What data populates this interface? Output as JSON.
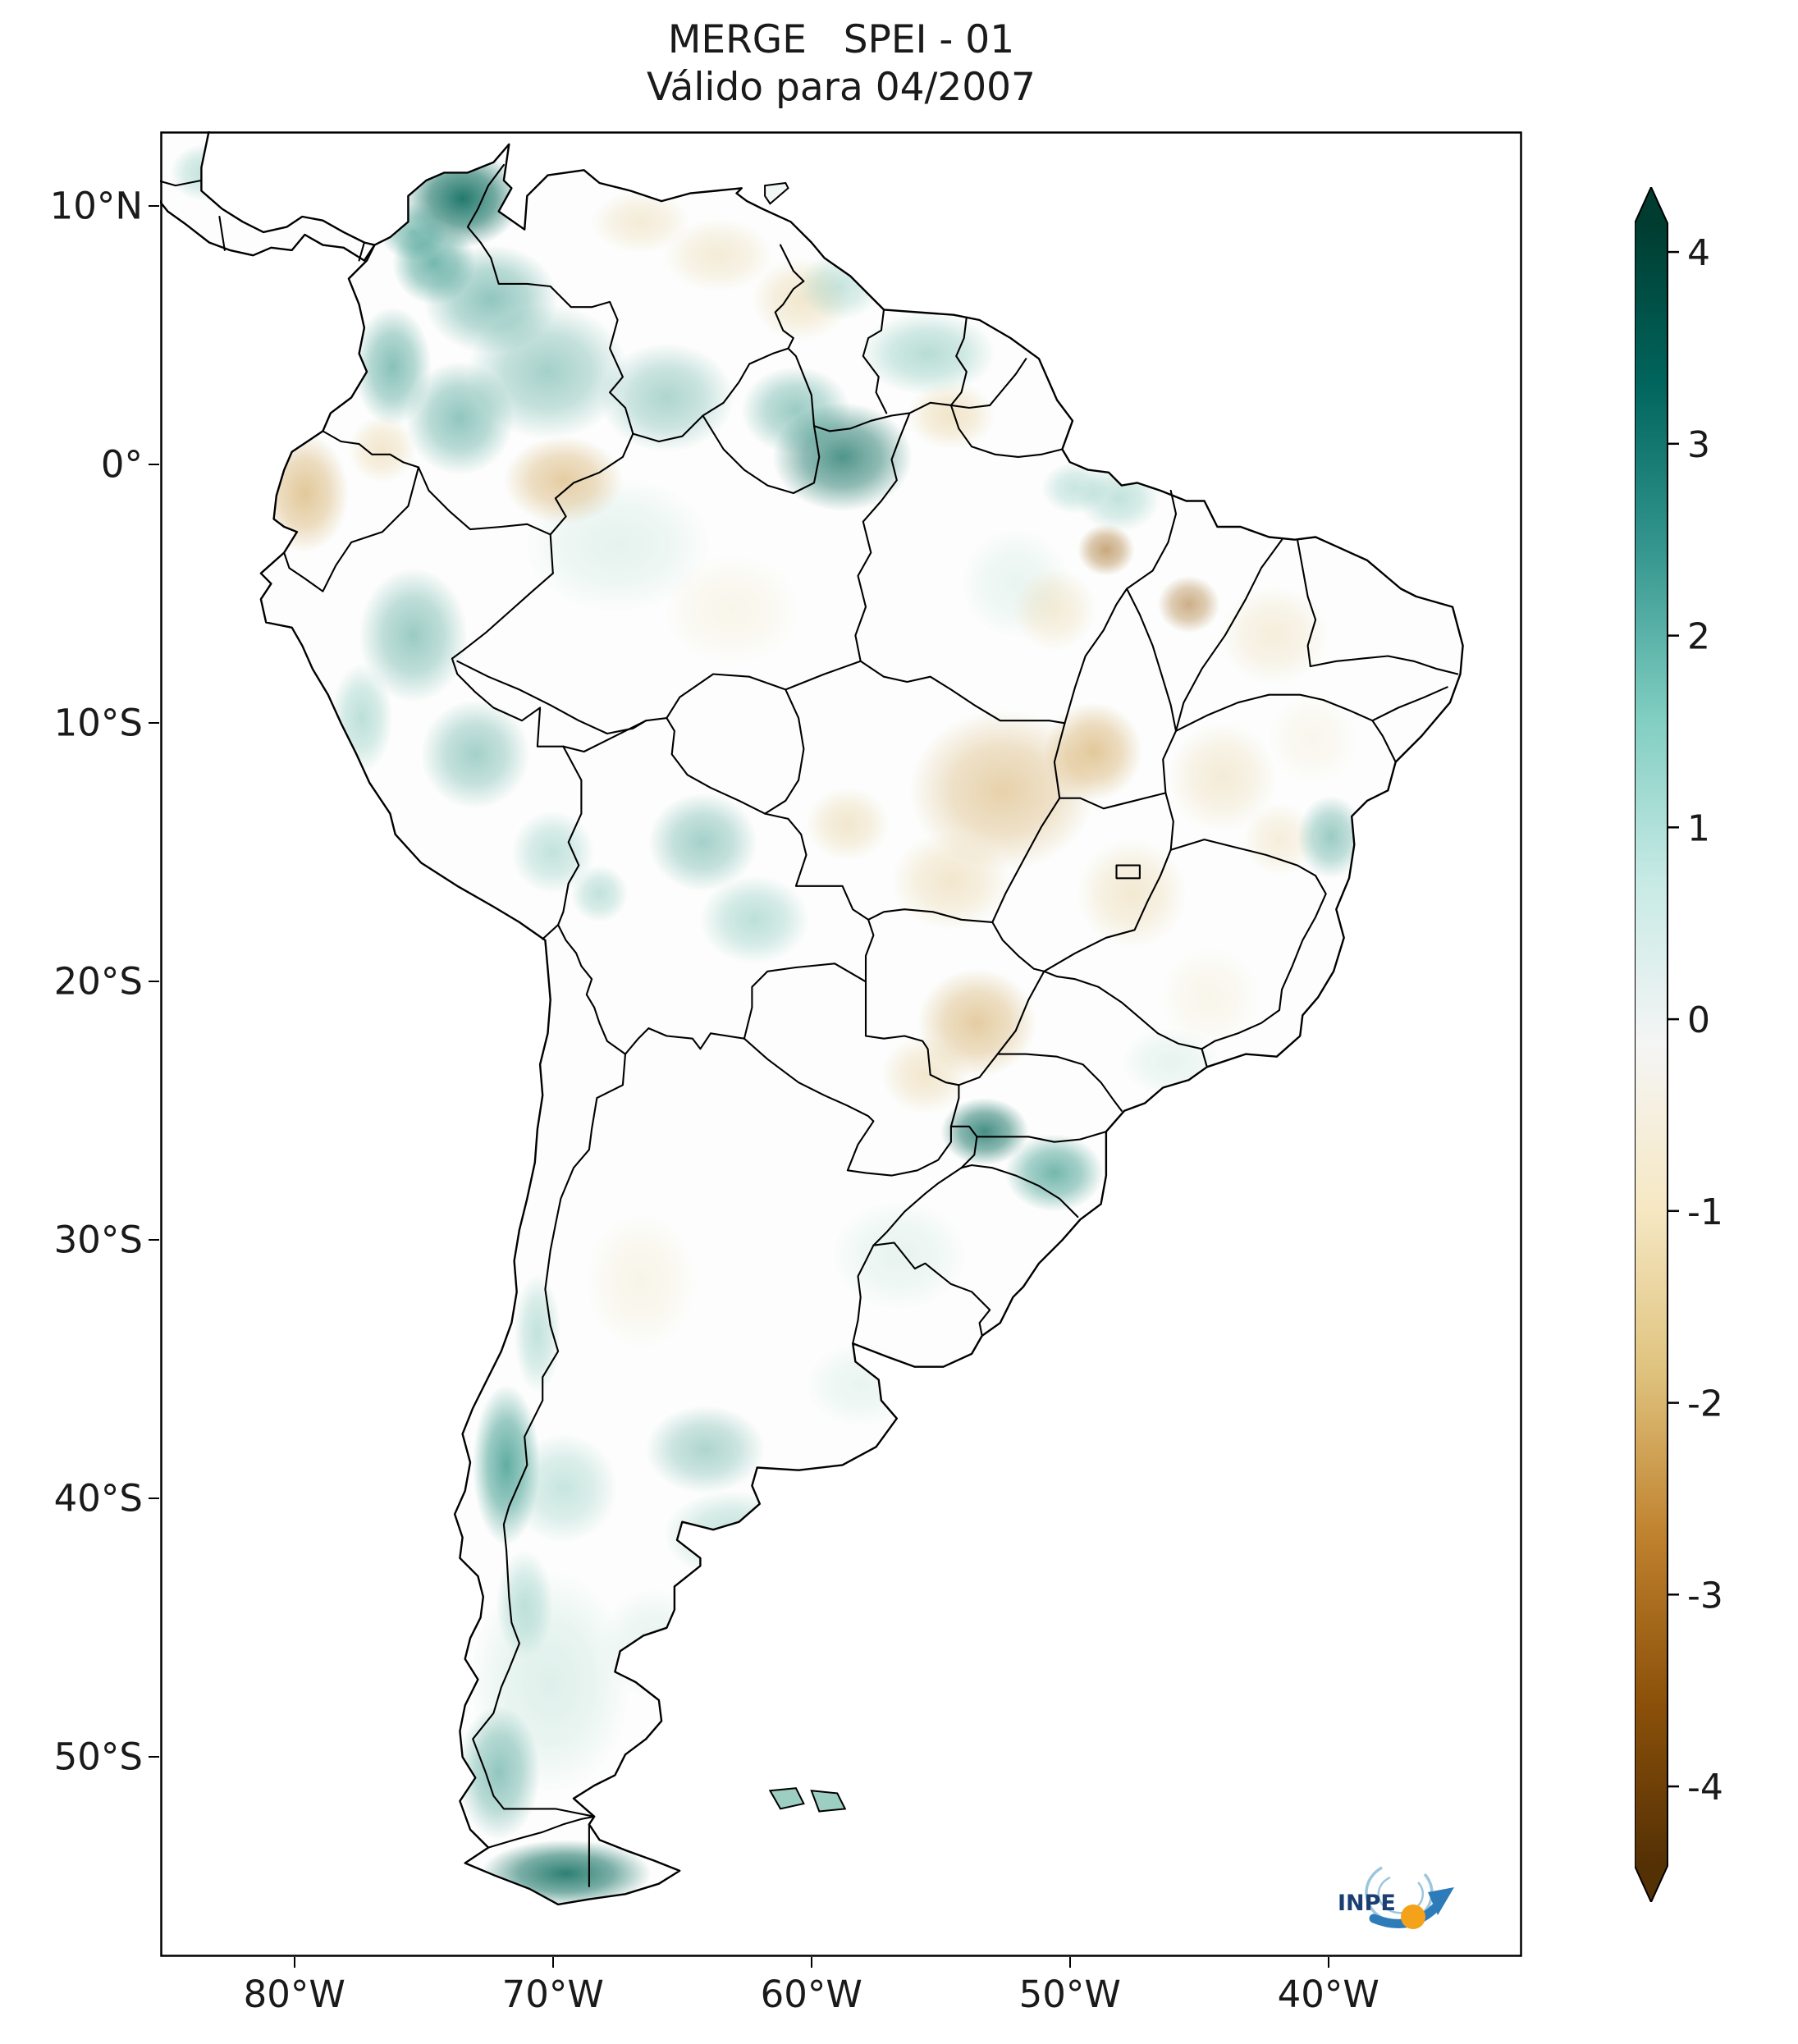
{
  "title": {
    "line1": "MERGE   SPEI - 01",
    "line2": "Válido para 04/2007"
  },
  "logo": {
    "text": "INPE"
  },
  "chart_data": {
    "type": "heatmap",
    "title": "MERGE   SPEI - 01",
    "subtitle": "Válido para 04/2007",
    "variable": "SPEI (Standardized Precipitation-Evapotranspiration Index), 1 month",
    "region": "South America",
    "map_extent": {
      "lon_range": [
        -85.2,
        -32.5
      ],
      "lat_range": [
        -57.8,
        12.9
      ]
    },
    "x_ticks": [
      {
        "label": "80°W",
        "lon": -80
      },
      {
        "label": "70°W",
        "lon": -70
      },
      {
        "label": "60°W",
        "lon": -60
      },
      {
        "label": "50°W",
        "lon": -50
      },
      {
        "label": "40°W",
        "lon": -40
      }
    ],
    "y_ticks": [
      {
        "label": "10°N",
        "lat": 10
      },
      {
        "label": "0°",
        "lat": 0
      },
      {
        "label": "10°S",
        "lat": -10
      },
      {
        "label": "20°S",
        "lat": -20
      },
      {
        "label": "30°S",
        "lat": -30
      },
      {
        "label": "40°S",
        "lat": -40
      },
      {
        "label": "50°S",
        "lat": -50
      }
    ],
    "colorbar": {
      "vmin": -4,
      "vmax": 4,
      "extend": "both",
      "ticks": [
        4,
        3,
        2,
        1,
        0,
        -1,
        -2,
        -3,
        -4
      ],
      "colors_top_to_bottom": [
        "#003c30",
        "#01665e",
        "#35978f",
        "#80cdc1",
        "#c7eae5",
        "#f5f5f5",
        "#f6e8c3",
        "#dfc27d",
        "#bf812d",
        "#8c510a",
        "#543005"
      ]
    },
    "wet_regions_positive_spei": [
      "Northern Colombia Caribbean coast (strong, ~2 to 4)",
      "Andean and eastern Colombia (moderate)",
      "Upper Rio Negro / north-central Amazonas, Brazil (strong)",
      "Guianas (moderate)",
      "Peruvian Andes (moderate)",
      "Central Bolivia (moderate)",
      "Misiones / Santa Catarina, southern Brazil (strong)",
      "South-central Chile and northern Patagonian Andes ~37-41°S (strong)",
      "Patagonia (widespread weak)",
      "Tierra del Fuego (strong, ~2 to 4)",
      "Eastern Bahia coast (moderate)"
    ],
    "dry_regions_negative_spei": [
      "Coastal Ecuador and far northern Peru (moderate)",
      "NW Brazil near the Colombia border (moderate)",
      "Guyana / Roraima border area (weak)",
      "Amapá and NE of the Amazon mouth (weak)",
      "Central Brazil: Mato Grosso, Goiás, Tocantins (moderate, ~-1 to -2)",
      "Mato Grosso do Sul and eastern Paraguay (moderate)",
      "Southern Maranhão spot (strong)",
      "NE Brazil interior (weak)",
      "Cuyo region, Argentina (weak)"
    ]
  }
}
